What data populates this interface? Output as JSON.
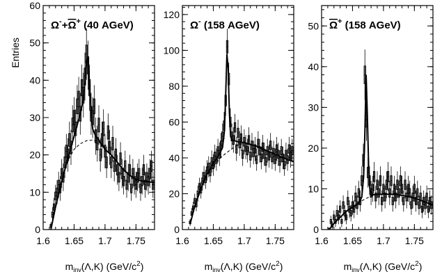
{
  "figure": {
    "ylabel": "Entries"
  },
  "chart_data": [
    {
      "type": "histogram",
      "title": "Ω⁻+Ω̄⁺ (40 AGeV)",
      "title_parts": {
        "main": "Ω",
        "sup1": "-",
        "plus": "+",
        "main2": "Ω",
        "sup2": "+",
        "rest": " (40 AGeV)",
        "overline_second": true
      },
      "xlabel": "m_inv(Λ,K) (GeV/c²)",
      "xlabel_parts": {
        "m": "m",
        "sub": "inv",
        "rest": "(Λ,K) (GeV/c",
        "sup": "2",
        "close": ")"
      },
      "xlim": [
        1.6,
        1.78
      ],
      "ylim": [
        0,
        60
      ],
      "xticks": [
        1.6,
        1.65,
        1.7,
        1.75
      ],
      "xtick_labels": [
        "1.6",
        "1.65",
        "1.7",
        "1.75"
      ],
      "yticks": [
        0,
        10,
        20,
        30,
        40,
        50,
        60
      ],
      "bin_width": 0.0025,
      "bins_x": [
        1.6125,
        1.615,
        1.6175,
        1.62,
        1.6225,
        1.625,
        1.6275,
        1.63,
        1.6325,
        1.635,
        1.6375,
        1.64,
        1.6425,
        1.645,
        1.6475,
        1.65,
        1.6525,
        1.655,
        1.6575,
        1.66,
        1.6625,
        1.665,
        1.6675,
        1.67,
        1.6725,
        1.675,
        1.6775,
        1.68,
        1.6825,
        1.685,
        1.6875,
        1.69,
        1.6925,
        1.695,
        1.6975,
        1.7,
        1.7025,
        1.705,
        1.7075,
        1.71,
        1.7125,
        1.715,
        1.7175,
        1.72,
        1.7225,
        1.725,
        1.7275,
        1.73,
        1.7325,
        1.735,
        1.7375,
        1.74,
        1.7425,
        1.745,
        1.7475,
        1.75,
        1.7525,
        1.755,
        1.7575,
        1.76,
        1.7625,
        1.765,
        1.7675,
        1.77,
        1.7725,
        1.775,
        1.7775
      ],
      "bins_y": [
        1,
        4,
        6,
        9,
        10,
        12,
        11,
        15,
        14,
        18,
        21,
        20,
        24,
        22,
        28,
        30,
        27,
        33,
        35,
        31,
        38,
        36,
        41,
        47,
        44,
        38,
        31,
        30,
        33,
        25,
        23,
        28,
        20,
        24,
        27,
        21,
        18,
        26,
        22,
        18,
        23,
        17,
        20,
        16,
        14,
        19,
        15,
        13,
        17,
        12,
        14,
        16,
        11,
        15,
        13,
        12,
        14,
        15,
        11,
        13,
        16,
        12,
        14,
        13,
        15,
        17,
        12
      ],
      "errors": [
        1,
        2,
        2.5,
        3,
        3.2,
        3.5,
        3.3,
        3.9,
        3.7,
        4.2,
        4.6,
        4.5,
        4.9,
        4.7,
        5.3,
        5.5,
        5.2,
        5.7,
        5.9,
        5.6,
        6.2,
        6,
        6.4,
        6.9,
        6.6,
        6.2,
        5.6,
        5.5,
        5.7,
        5,
        4.8,
        5.3,
        4.5,
        4.9,
        5.2,
        4.6,
        4.2,
        5.1,
        4.7,
        4.2,
        4.8,
        4.1,
        4.5,
        4,
        3.7,
        4.4,
        3.9,
        3.6,
        4.1,
        3.5,
        3.7,
        4,
        3.3,
        3.9,
        3.6,
        3.5,
        3.7,
        3.9,
        3.3,
        3.6,
        4,
        3.5,
        3.7,
        3.6,
        3.9,
        4.1,
        3.5
      ],
      "fit_x": [
        1.6125,
        1.62,
        1.63,
        1.64,
        1.65,
        1.655,
        1.66,
        1.665,
        1.668,
        1.67,
        1.6725,
        1.675,
        1.678,
        1.68,
        1.685,
        1.69,
        1.7,
        1.71,
        1.72,
        1.73,
        1.74,
        1.75,
        1.76,
        1.77,
        1.78
      ],
      "fit_y": [
        0,
        6,
        13,
        19,
        25,
        28,
        31,
        35,
        40,
        45,
        46,
        38,
        30,
        27,
        25,
        24,
        21.5,
        20,
        18,
        16,
        14.5,
        13.5,
        13,
        12.8,
        12.6
      ],
      "bg_x": [
        1.6125,
        1.62,
        1.63,
        1.64,
        1.65,
        1.66,
        1.67,
        1.68,
        1.69,
        1.7
      ],
      "bg_y": [
        0,
        6,
        13,
        18.5,
        21.5,
        23,
        23.8,
        24,
        23.5,
        22
      ]
    },
    {
      "type": "histogram",
      "title": "Ω⁻ (158 AGeV)",
      "title_parts": {
        "main": "Ω",
        "sup1": "-",
        "rest": " (158 AGeV)"
      },
      "xlabel": "m_inv(Λ,K) (GeV/c²)",
      "xlabel_parts": {
        "m": "m",
        "sub": "inv",
        "rest": "(Λ,K) (GeV/c",
        "sup": "2",
        "close": ")"
      },
      "xlim": [
        1.6,
        1.78
      ],
      "ylim": [
        0,
        125
      ],
      "xticks": [
        1.6,
        1.65,
        1.7,
        1.75
      ],
      "xtick_labels": [
        "1.6",
        "1.65",
        "1.7",
        "1.75"
      ],
      "yticks": [
        0,
        20,
        40,
        60,
        80,
        100,
        120
      ],
      "bin_width": 0.0025,
      "bins_x": [
        1.6125,
        1.615,
        1.6175,
        1.62,
        1.6225,
        1.625,
        1.6275,
        1.63,
        1.6325,
        1.635,
        1.6375,
        1.64,
        1.6425,
        1.645,
        1.6475,
        1.65,
        1.6525,
        1.655,
        1.6575,
        1.66,
        1.6625,
        1.665,
        1.6675,
        1.67,
        1.6725,
        1.675,
        1.6775,
        1.68,
        1.6825,
        1.685,
        1.6875,
        1.69,
        1.6925,
        1.695,
        1.6975,
        1.7,
        1.7025,
        1.705,
        1.7075,
        1.71,
        1.7125,
        1.715,
        1.7175,
        1.72,
        1.7225,
        1.725,
        1.7275,
        1.73,
        1.7325,
        1.735,
        1.7375,
        1.74,
        1.7425,
        1.745,
        1.7475,
        1.75,
        1.7525,
        1.755,
        1.7575,
        1.76,
        1.7625,
        1.765,
        1.7675,
        1.77,
        1.7725,
        1.775,
        1.7775
      ],
      "bins_y": [
        4,
        9,
        12,
        16,
        14,
        20,
        24,
        22,
        27,
        30,
        28,
        33,
        35,
        32,
        38,
        36,
        41,
        39,
        44,
        42,
        47,
        52,
        58,
        72,
        102,
        84,
        60,
        52,
        50,
        57,
        45,
        54,
        48,
        51,
        42,
        49,
        46,
        44,
        50,
        41,
        47,
        43,
        45,
        39,
        48,
        44,
        40,
        46,
        42,
        38,
        44,
        41,
        47,
        40,
        43,
        39,
        45,
        42,
        38,
        44,
        40,
        36,
        42,
        39,
        45,
        41,
        44
      ],
      "errors": [
        2,
        3,
        3.5,
        4,
        3.8,
        4.5,
        4.9,
        4.7,
        5.2,
        5.5,
        5.3,
        5.7,
        5.9,
        5.7,
        6.2,
        6,
        6.4,
        6.2,
        6.6,
        6.5,
        6.9,
        7.2,
        7.6,
        8.5,
        10,
        9.2,
        7.7,
        7.2,
        7.1,
        7.5,
        6.7,
        7.3,
        6.9,
        7.1,
        6.5,
        7,
        6.8,
        6.6,
        7.1,
        6.4,
        6.9,
        6.6,
        6.7,
        6.2,
        6.9,
        6.6,
        6.3,
        6.8,
        6.5,
        6.2,
        6.6,
        6.4,
        6.9,
        6.3,
        6.6,
        6.2,
        6.7,
        6.5,
        6.2,
        6.6,
        6.3,
        6,
        6.5,
        6.2,
        6.7,
        6.4,
        6.6
      ],
      "fit_x": [
        1.6125,
        1.62,
        1.63,
        1.64,
        1.65,
        1.66,
        1.665,
        1.668,
        1.67,
        1.672,
        1.674,
        1.676,
        1.678,
        1.68,
        1.69,
        1.7,
        1.71,
        1.72,
        1.73,
        1.74,
        1.75,
        1.76,
        1.77,
        1.78
      ],
      "fit_y": [
        3,
        13,
        23,
        31,
        37,
        42,
        46,
        55,
        75,
        98,
        90,
        65,
        52,
        50,
        49,
        48.5,
        47.5,
        46.5,
        45,
        43.5,
        42,
        40.5,
        39,
        38
      ],
      "bg_x": [
        1.6125,
        1.62,
        1.63,
        1.64,
        1.65,
        1.66,
        1.67,
        1.68,
        1.69,
        1.7
      ],
      "bg_y": [
        3,
        13,
        23,
        30,
        35.5,
        39.5,
        42.5,
        45,
        47.5,
        48
      ]
    },
    {
      "type": "histogram",
      "title": "Ω̄⁺ (158 AGeV)",
      "title_parts": {
        "main": "Ω",
        "sup1": "+",
        "rest": " (158 AGeV)",
        "overline_first": true
      },
      "xlabel": "m_inv(Λ,K) (GeV/c²)",
      "xlabel_parts": {
        "m": "m",
        "sub": "inv",
        "rest": "(Λ,K) (GeV/c",
        "sup": "2",
        "close": ")"
      },
      "xlim": [
        1.6,
        1.78
      ],
      "ylim": [
        0,
        55
      ],
      "xticks": [
        1.6,
        1.65,
        1.7,
        1.75
      ],
      "xtick_labels": [
        "1.6",
        "1.65",
        "1.7",
        "1.75"
      ],
      "yticks": [
        0,
        10,
        20,
        30,
        40,
        50
      ],
      "bin_width": 0.0025,
      "bins_x": [
        1.6125,
        1.615,
        1.6175,
        1.62,
        1.6225,
        1.625,
        1.6275,
        1.63,
        1.6325,
        1.635,
        1.6375,
        1.64,
        1.6425,
        1.645,
        1.6475,
        1.65,
        1.6525,
        1.655,
        1.6575,
        1.66,
        1.6625,
        1.665,
        1.6675,
        1.67,
        1.6725,
        1.675,
        1.6775,
        1.68,
        1.6825,
        1.685,
        1.6875,
        1.69,
        1.6925,
        1.695,
        1.6975,
        1.7,
        1.7025,
        1.705,
        1.7075,
        1.71,
        1.7125,
        1.715,
        1.7175,
        1.72,
        1.7225,
        1.725,
        1.7275,
        1.73,
        1.7325,
        1.735,
        1.7375,
        1.74,
        1.7425,
        1.745,
        1.7475,
        1.75,
        1.7525,
        1.755,
        1.7575,
        1.76,
        1.7625,
        1.765,
        1.7675,
        1.77,
        1.7725,
        1.775,
        1.7775
      ],
      "bins_y": [
        0,
        2,
        1,
        3,
        2,
        4,
        3,
        5,
        2,
        6,
        4,
        3,
        7,
        5,
        4,
        6,
        5,
        8,
        6,
        9,
        7,
        12,
        17,
        38,
        27,
        14,
        12,
        9,
        10,
        13,
        8,
        11,
        9,
        12,
        7,
        10,
        8,
        11,
        13,
        9,
        12,
        7,
        10,
        8,
        11,
        9,
        12,
        10,
        7,
        11,
        8,
        10,
        9,
        6,
        8,
        10,
        7,
        9,
        6,
        8,
        5,
        7,
        6,
        8,
        5,
        7,
        6
      ],
      "errors": [
        0.5,
        1.4,
        1,
        1.7,
        1.4,
        2,
        1.7,
        2.2,
        1.4,
        2.4,
        2,
        1.7,
        2.6,
        2.2,
        2,
        2.4,
        2.2,
        2.8,
        2.4,
        3,
        2.6,
        3.5,
        4.1,
        6.2,
        5.2,
        3.7,
        3.5,
        3,
        3.2,
        3.6,
        2.8,
        3.3,
        3,
        3.5,
        2.6,
        3.2,
        2.8,
        3.3,
        3.6,
        3,
        3.5,
        2.6,
        3.2,
        2.8,
        3.3,
        3,
        3.5,
        3.2,
        2.6,
        3.3,
        2.8,
        3.2,
        3,
        2.4,
        2.8,
        3.2,
        2.6,
        3,
        2.4,
        2.8,
        2.2,
        2.6,
        2.4,
        2.8,
        2.2,
        2.6,
        2.4
      ],
      "fit_x": [
        1.6125,
        1.62,
        1.63,
        1.64,
        1.65,
        1.66,
        1.665,
        1.668,
        1.67,
        1.672,
        1.674,
        1.676,
        1.678,
        1.68,
        1.69,
        1.7,
        1.71,
        1.72,
        1.73,
        1.74,
        1.75,
        1.76,
        1.77,
        1.78
      ],
      "fit_y": [
        0,
        1.5,
        3,
        4.5,
        5.5,
        6.5,
        8,
        13,
        24,
        38,
        28,
        16,
        10,
        8.5,
        8.6,
        8.7,
        8.7,
        8.6,
        8.4,
        8.1,
        7.7,
        7.2,
        6.6,
        6
      ],
      "bg_x": [
        1.6125,
        1.62,
        1.63,
        1.64,
        1.65,
        1.66,
        1.67,
        1.68,
        1.69,
        1.7
      ],
      "bg_y": [
        0,
        1.5,
        3,
        4.5,
        5.6,
        6.6,
        7.5,
        8.2,
        8.6,
        8.7
      ]
    }
  ]
}
